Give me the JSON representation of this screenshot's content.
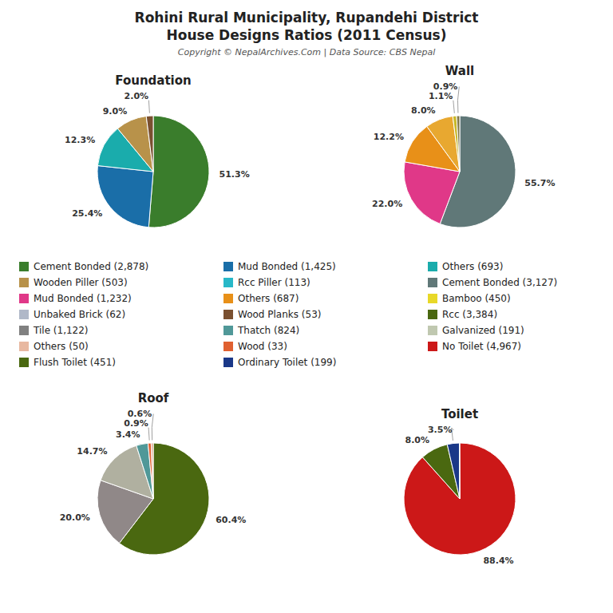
{
  "title": "Rohini Rural Municipality, Rupandehi District",
  "subtitle": "House Designs Ratios (2011 Census)",
  "annotations": [
    "Copyright © NepalArchives.Com | Data Source: CBS Nepal"
  ],
  "chart_data": [
    {
      "type": "pie",
      "title": "Foundation",
      "values": [
        51.3,
        25.4,
        12.3,
        9.0,
        2.0
      ],
      "value_labels": [
        "51.3%",
        "25.4%",
        "12.3%",
        "9.0%",
        "2.0%"
      ],
      "colors": [
        "#3a7d2c",
        "#1a6ea8",
        "#1aacac",
        "#b8924a",
        "#7a5030"
      ],
      "data_labels": true
    },
    {
      "type": "pie",
      "title": "Wall",
      "values": [
        55.7,
        22.0,
        12.2,
        8.0,
        1.1,
        0.9
      ],
      "value_labels": [
        "55.7%",
        "22.0%",
        "12.2%",
        "8.0%",
        "1.1%",
        "0.9%"
      ],
      "colors": [
        "#607878",
        "#e03888",
        "#e89018",
        "#e8a830",
        "#c8b828",
        "#807848"
      ],
      "data_labels": true
    },
    {
      "type": "pie",
      "title": "Roof",
      "values": [
        60.4,
        20.0,
        14.7,
        3.4,
        0.9,
        0.6
      ],
      "value_labels": [
        "60.4%",
        "20.0%",
        "14.7%",
        "3.4%",
        "0.9%",
        "0.6%"
      ],
      "colors": [
        "#4a6810",
        "#908888",
        "#b0b0a0",
        "#509898",
        "#e06030",
        "#e0a890"
      ],
      "data_labels": true
    },
    {
      "type": "pie",
      "title": "Toilet",
      "values": [
        88.4,
        8.0,
        3.5,
        0.1
      ],
      "value_labels": [
        "88.4%",
        "8.0%",
        "3.5%",
        null
      ],
      "colors": [
        "#cc1818",
        "#4a6810",
        "#1a3888",
        "#208840"
      ],
      "data_labels": true
    }
  ],
  "legend_items": [
    {
      "label": "Cement Bonded (2,878)",
      "color": "#3a7d2c"
    },
    {
      "label": "Mud Bonded (1,425)",
      "color": "#1a6ea8"
    },
    {
      "label": "Others (693)",
      "color": "#1aacac"
    },
    {
      "label": "Wooden Piller (503)",
      "color": "#b8924a"
    },
    {
      "label": "Rcc Piller (113)",
      "color": "#28b8c8"
    },
    {
      "label": "Cement Bonded (3,127)",
      "color": "#607878"
    },
    {
      "label": "Mud Bonded (1,232)",
      "color": "#e03888"
    },
    {
      "label": "Others (687)",
      "color": "#e89018"
    },
    {
      "label": "Bamboo (450)",
      "color": "#e8d828"
    },
    {
      "label": "Unbaked Brick (62)",
      "color": "#b0b8c8"
    },
    {
      "label": "Wood Planks (53)",
      "color": "#7a5030"
    },
    {
      "label": "Rcc (3,384)",
      "color": "#4a6810"
    },
    {
      "label": "Tile (1,122)",
      "color": "#808080"
    },
    {
      "label": "Thatch (824)",
      "color": "#509898"
    },
    {
      "label": "Galvanized (191)",
      "color": "#c0c8b0"
    },
    {
      "label": "Others (50)",
      "color": "#e8b8a0"
    },
    {
      "label": "Wood (33)",
      "color": "#e06030"
    },
    {
      "label": "No Toilet (4,967)",
      "color": "#cc1818"
    },
    {
      "label": "Flush Toilet (451)",
      "color": "#4a6810"
    },
    {
      "label": "Ordinary Toilet (199)",
      "color": "#1a3888"
    }
  ]
}
